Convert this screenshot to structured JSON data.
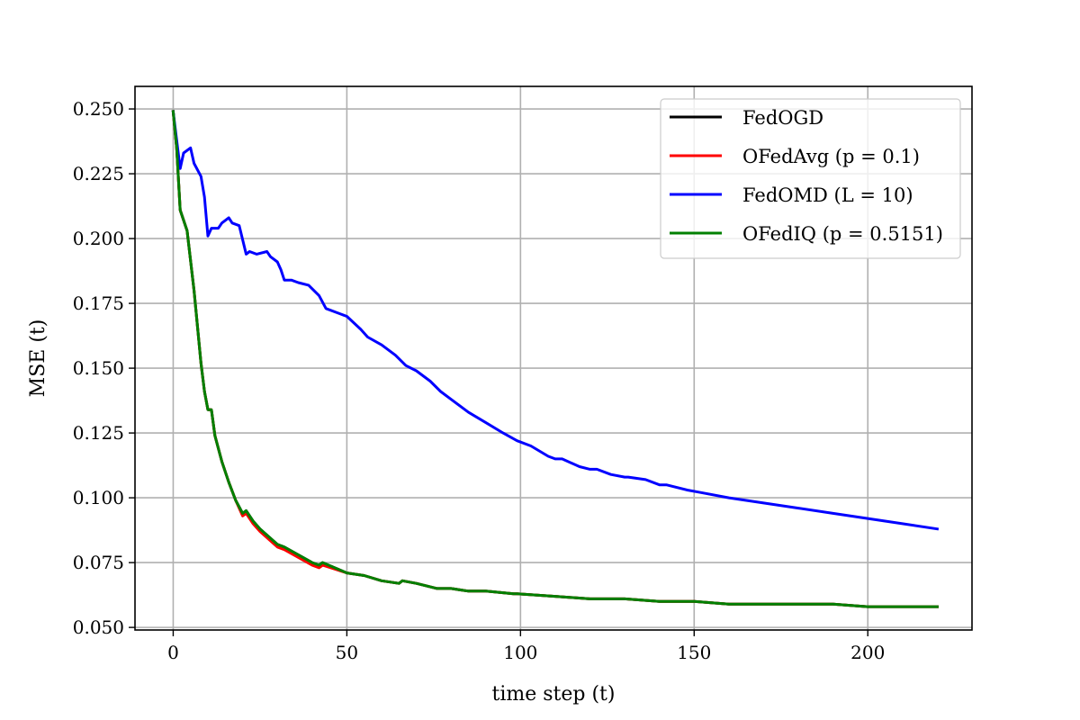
{
  "chart_data": {
    "type": "line",
    "title": "",
    "xlabel": "time step (t)",
    "ylabel": "MSE (t)",
    "xlim": [
      -11,
      230
    ],
    "ylim": [
      0.049,
      0.2587
    ],
    "xticks": [
      0,
      50,
      100,
      150,
      200
    ],
    "yticks": [
      0.05,
      0.075,
      0.1,
      0.125,
      0.15,
      0.175,
      0.2,
      0.225,
      0.25
    ],
    "xtick_labels": [
      "0",
      "50",
      "100",
      "150",
      "200"
    ],
    "ytick_labels": [
      "0.050",
      "0.075",
      "0.100",
      "0.125",
      "0.150",
      "0.175",
      "0.200",
      "0.225",
      "0.250"
    ],
    "grid": true,
    "legend_position": "top-right",
    "series": [
      {
        "name": "FedOGD",
        "color": "#000000",
        "points": [
          [
            0,
            0.249
          ],
          [
            1,
            0.235
          ],
          [
            2,
            0.211
          ],
          [
            4,
            0.203
          ],
          [
            6,
            0.18
          ],
          [
            8,
            0.152
          ],
          [
            9,
            0.141
          ],
          [
            10,
            0.134
          ],
          [
            11,
            0.134
          ],
          [
            12,
            0.124
          ],
          [
            14,
            0.114
          ],
          [
            16,
            0.106
          ],
          [
            18,
            0.099
          ],
          [
            20,
            0.094
          ],
          [
            21,
            0.095
          ],
          [
            23,
            0.091
          ],
          [
            25,
            0.088
          ],
          [
            30,
            0.082
          ],
          [
            32,
            0.081
          ],
          [
            40,
            0.075
          ],
          [
            42,
            0.074
          ],
          [
            43,
            0.075
          ],
          [
            50,
            0.071
          ],
          [
            55,
            0.07
          ],
          [
            60,
            0.068
          ],
          [
            65,
            0.067
          ],
          [
            66,
            0.068
          ],
          [
            70,
            0.067
          ],
          [
            76,
            0.065
          ],
          [
            80,
            0.065
          ],
          [
            85,
            0.064
          ],
          [
            90,
            0.064
          ],
          [
            98,
            0.063
          ],
          [
            99,
            0.063
          ],
          [
            110,
            0.062
          ],
          [
            120,
            0.061
          ],
          [
            130,
            0.061
          ],
          [
            140,
            0.06
          ],
          [
            150,
            0.06
          ],
          [
            160,
            0.059
          ],
          [
            170,
            0.059
          ],
          [
            180,
            0.059
          ],
          [
            190,
            0.059
          ],
          [
            200,
            0.058
          ],
          [
            210,
            0.058
          ],
          [
            218,
            0.058
          ],
          [
            220,
            0.058
          ]
        ]
      },
      {
        "name": "OFedAvg (p = 0.1)",
        "color": "#ff0000",
        "points": [
          [
            0,
            0.249
          ],
          [
            1,
            0.235
          ],
          [
            2,
            0.211
          ],
          [
            4,
            0.203
          ],
          [
            6,
            0.18
          ],
          [
            8,
            0.152
          ],
          [
            9,
            0.141
          ],
          [
            10,
            0.134
          ],
          [
            11,
            0.134
          ],
          [
            12,
            0.124
          ],
          [
            14,
            0.114
          ],
          [
            16,
            0.106
          ],
          [
            18,
            0.099
          ],
          [
            20,
            0.093
          ],
          [
            21,
            0.094
          ],
          [
            23,
            0.09
          ],
          [
            25,
            0.087
          ],
          [
            30,
            0.081
          ],
          [
            32,
            0.08
          ],
          [
            40,
            0.074
          ],
          [
            42,
            0.073
          ],
          [
            43,
            0.074
          ],
          [
            50,
            0.071
          ],
          [
            55,
            0.07
          ],
          [
            60,
            0.068
          ],
          [
            65,
            0.067
          ],
          [
            66,
            0.068
          ],
          [
            70,
            0.067
          ],
          [
            76,
            0.065
          ],
          [
            80,
            0.065
          ],
          [
            85,
            0.064
          ],
          [
            90,
            0.064
          ],
          [
            98,
            0.063
          ],
          [
            99,
            0.063
          ],
          [
            110,
            0.062
          ],
          [
            120,
            0.061
          ],
          [
            130,
            0.061
          ],
          [
            140,
            0.06
          ],
          [
            150,
            0.06
          ],
          [
            160,
            0.059
          ],
          [
            170,
            0.059
          ],
          [
            180,
            0.059
          ],
          [
            190,
            0.059
          ],
          [
            200,
            0.058
          ],
          [
            210,
            0.058
          ],
          [
            218,
            0.058
          ],
          [
            220,
            0.058
          ]
        ]
      },
      {
        "name": "FedOMD (L = 10)",
        "color": "#0000ff",
        "points": [
          [
            0,
            0.249
          ],
          [
            1,
            0.238
          ],
          [
            2,
            0.227
          ],
          [
            3,
            0.233
          ],
          [
            5,
            0.235
          ],
          [
            6,
            0.229
          ],
          [
            8,
            0.224
          ],
          [
            9,
            0.216
          ],
          [
            10,
            0.201
          ],
          [
            11,
            0.204
          ],
          [
            12,
            0.204
          ],
          [
            13,
            0.204
          ],
          [
            14,
            0.206
          ],
          [
            16,
            0.208
          ],
          [
            17,
            0.206
          ],
          [
            19,
            0.205
          ],
          [
            21,
            0.194
          ],
          [
            22,
            0.195
          ],
          [
            24,
            0.194
          ],
          [
            27,
            0.195
          ],
          [
            28,
            0.193
          ],
          [
            30,
            0.191
          ],
          [
            31,
            0.188
          ],
          [
            32,
            0.184
          ],
          [
            34,
            0.184
          ],
          [
            36,
            0.183
          ],
          [
            39,
            0.182
          ],
          [
            42,
            0.178
          ],
          [
            44,
            0.173
          ],
          [
            48,
            0.171
          ],
          [
            50,
            0.17
          ],
          [
            54,
            0.165
          ],
          [
            56,
            0.162
          ],
          [
            60,
            0.159
          ],
          [
            64,
            0.155
          ],
          [
            67,
            0.151
          ],
          [
            70,
            0.149
          ],
          [
            74,
            0.145
          ],
          [
            77,
            0.141
          ],
          [
            80,
            0.138
          ],
          [
            85,
            0.133
          ],
          [
            90,
            0.129
          ],
          [
            95,
            0.125
          ],
          [
            99,
            0.122
          ],
          [
            103,
            0.12
          ],
          [
            108,
            0.116
          ],
          [
            110,
            0.115
          ],
          [
            112,
            0.115
          ],
          [
            117,
            0.112
          ],
          [
            120,
            0.111
          ],
          [
            122,
            0.111
          ],
          [
            126,
            0.109
          ],
          [
            130,
            0.108
          ],
          [
            131,
            0.108
          ],
          [
            136,
            0.107
          ],
          [
            140,
            0.105
          ],
          [
            142,
            0.105
          ],
          [
            148,
            0.103
          ],
          [
            152,
            0.102
          ],
          [
            160,
            0.1
          ],
          [
            165,
            0.099
          ],
          [
            170,
            0.098
          ],
          [
            180,
            0.096
          ],
          [
            190,
            0.094
          ],
          [
            200,
            0.092
          ],
          [
            210,
            0.09
          ],
          [
            220,
            0.088
          ]
        ]
      },
      {
        "name": "OFedIQ (p = 0.5151)",
        "color": "#008000",
        "points": [
          [
            0,
            0.249
          ],
          [
            1,
            0.235
          ],
          [
            2,
            0.211
          ],
          [
            4,
            0.203
          ],
          [
            6,
            0.18
          ],
          [
            8,
            0.152
          ],
          [
            9,
            0.141
          ],
          [
            10,
            0.134
          ],
          [
            11,
            0.134
          ],
          [
            12,
            0.124
          ],
          [
            14,
            0.114
          ],
          [
            16,
            0.106
          ],
          [
            18,
            0.099
          ],
          [
            20,
            0.094
          ],
          [
            21,
            0.095
          ],
          [
            23,
            0.091
          ],
          [
            25,
            0.088
          ],
          [
            30,
            0.082
          ],
          [
            32,
            0.081
          ],
          [
            40,
            0.075
          ],
          [
            42,
            0.074
          ],
          [
            43,
            0.075
          ],
          [
            50,
            0.071
          ],
          [
            55,
            0.07
          ],
          [
            60,
            0.068
          ],
          [
            65,
            0.067
          ],
          [
            66,
            0.068
          ],
          [
            70,
            0.067
          ],
          [
            76,
            0.065
          ],
          [
            80,
            0.065
          ],
          [
            85,
            0.064
          ],
          [
            90,
            0.064
          ],
          [
            98,
            0.063
          ],
          [
            99,
            0.063
          ],
          [
            110,
            0.062
          ],
          [
            120,
            0.061
          ],
          [
            130,
            0.061
          ],
          [
            140,
            0.06
          ],
          [
            150,
            0.06
          ],
          [
            160,
            0.059
          ],
          [
            170,
            0.059
          ],
          [
            180,
            0.059
          ],
          [
            190,
            0.059
          ],
          [
            200,
            0.058
          ],
          [
            210,
            0.058
          ],
          [
            218,
            0.058
          ],
          [
            220,
            0.058
          ]
        ]
      }
    ]
  }
}
